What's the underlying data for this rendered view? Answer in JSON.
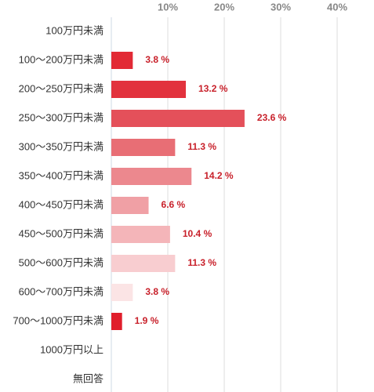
{
  "chart_data": {
    "type": "hbar",
    "categories": [
      "100万円未満",
      "100〜200万円未満",
      "200〜250万円未満",
      "250〜300万円未満",
      "300〜350万円未満",
      "350〜400万円未満",
      "400〜450万円未満",
      "450〜500万円未満",
      "500〜600万円未満",
      "600〜700万円未満",
      "700〜1000万円未満",
      "1000万円以上",
      "無回答"
    ],
    "values": [
      0,
      3.8,
      13.2,
      23.6,
      11.3,
      14.2,
      6.6,
      10.4,
      11.3,
      3.8,
      1.9,
      0,
      0
    ],
    "value_labels": [
      null,
      "3.8 %",
      "13.2 %",
      "23.6 %",
      "11.3 %",
      "14.2 %",
      "6.6 %",
      "10.4 %",
      "11.3 %",
      "3.8 %",
      "1.9 %",
      null,
      null
    ],
    "colors": [
      "#e22a35",
      "#e22a35",
      "#e2323d",
      "#e4505a",
      "#e86e75",
      "#ec888e",
      "#f0a0a5",
      "#f4b5b9",
      "#f8cdd0",
      "#fbe4e5",
      "#e01e2c",
      "#e22a35",
      "#e22a35"
    ],
    "xlim": [
      0,
      46
    ],
    "xticks": [
      {
        "value": 10,
        "label": "10%"
      },
      {
        "value": 20,
        "label": "20%"
      },
      {
        "value": 30,
        "label": "30%"
      },
      {
        "value": 40,
        "label": "40%"
      }
    ],
    "grid": true
  }
}
